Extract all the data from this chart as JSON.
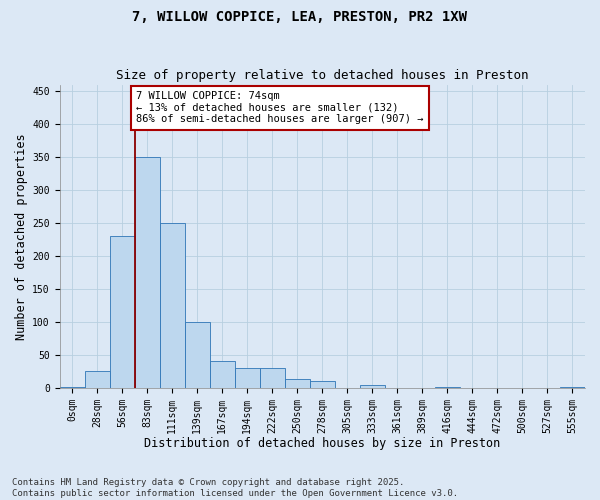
{
  "title_line1": "7, WILLOW COPPICE, LEA, PRESTON, PR2 1XW",
  "title_line2": "Size of property relative to detached houses in Preston",
  "xlabel": "Distribution of detached houses by size in Preston",
  "ylabel": "Number of detached properties",
  "bar_color": "#bdd7ee",
  "bar_edge_color": "#2e75b6",
  "background_color": "#dce8f5",
  "grid_color": "#b8cfe0",
  "categories": [
    "0sqm",
    "28sqm",
    "56sqm",
    "83sqm",
    "111sqm",
    "139sqm",
    "167sqm",
    "194sqm",
    "222sqm",
    "250sqm",
    "278sqm",
    "305sqm",
    "333sqm",
    "361sqm",
    "389sqm",
    "416sqm",
    "444sqm",
    "472sqm",
    "500sqm",
    "527sqm",
    "555sqm"
  ],
  "values": [
    2,
    25,
    230,
    350,
    250,
    100,
    40,
    30,
    30,
    13,
    10,
    0,
    5,
    0,
    0,
    2,
    0,
    0,
    0,
    0,
    2
  ],
  "ylim": [
    0,
    460
  ],
  "yticks": [
    0,
    50,
    100,
    150,
    200,
    250,
    300,
    350,
    400,
    450
  ],
  "property_line_index": 2.5,
  "annotation_text": "7 WILLOW COPPICE: 74sqm\n← 13% of detached houses are smaller (132)\n86% of semi-detached houses are larger (907) →",
  "annotation_box_color": "#ffffff",
  "annotation_box_edge": "#aa0000",
  "footer_line1": "Contains HM Land Registry data © Crown copyright and database right 2025.",
  "footer_line2": "Contains public sector information licensed under the Open Government Licence v3.0.",
  "red_line_color": "#8b0000",
  "title_fontsize": 10,
  "subtitle_fontsize": 9,
  "axis_label_fontsize": 8.5,
  "tick_fontsize": 7,
  "annotation_fontsize": 7.5,
  "footer_fontsize": 6.5
}
